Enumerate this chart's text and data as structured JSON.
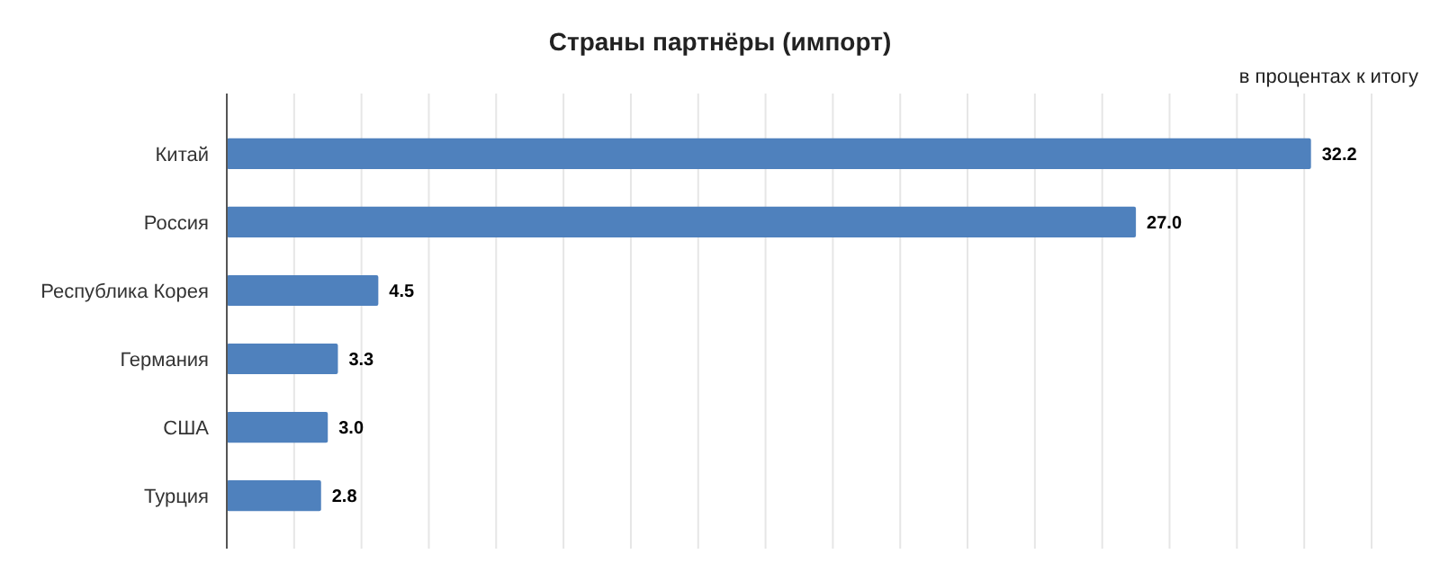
{
  "chart_data": {
    "type": "bar",
    "orientation": "horizontal",
    "title": "Страны партнёры (импорт)",
    "subtitle": "в процентах к итогу",
    "categories": [
      "Китай",
      "Россия",
      "Республика Корея",
      "Германия",
      "США",
      "Турция"
    ],
    "values": [
      32.2,
      27.0,
      4.5,
      3.3,
      3.0,
      2.8
    ],
    "color": "#4f81bd",
    "value_labels": [
      "32.2",
      "27.0",
      "4.5",
      "3.3",
      "3.0",
      "2.8"
    ],
    "xlim": [
      0,
      34
    ],
    "xticks": [
      {
        "value": 0,
        "label": null
      },
      {
        "value": 2,
        "label": null
      },
      {
        "value": 4,
        "label": null
      },
      {
        "value": 6,
        "label": null
      },
      {
        "value": 8,
        "label": null
      },
      {
        "value": 10,
        "label": null
      },
      {
        "value": 12,
        "label": null
      },
      {
        "value": 14,
        "label": null
      },
      {
        "value": 16,
        "label": null
      },
      {
        "value": 18,
        "label": null
      },
      {
        "value": 20,
        "label": null
      },
      {
        "value": 22,
        "label": null
      },
      {
        "value": 24,
        "label": null
      },
      {
        "value": 26,
        "label": null
      },
      {
        "value": 28,
        "label": null
      },
      {
        "value": 30,
        "label": null
      },
      {
        "value": 32,
        "label": null
      },
      {
        "value": 34,
        "label": null
      }
    ],
    "grid": "x",
    "tick_labels": "y"
  }
}
